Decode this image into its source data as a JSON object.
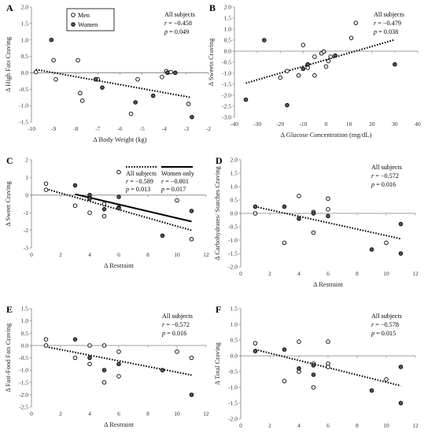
{
  "figure": {
    "legend": {
      "men": "Men",
      "women": "Women"
    }
  },
  "chart_data": [
    {
      "panel": "A",
      "type": "scatter",
      "xlabel": "Δ Body Weight (kg)",
      "ylabel": "Δ High Fats Craving",
      "xlim": [
        -10,
        -2
      ],
      "ylim": [
        -1.5,
        2.0
      ],
      "xticks": [
        -10,
        -9,
        -8,
        -7,
        -6,
        -5,
        -4,
        -3,
        -2
      ],
      "yticks": [
        -1.5,
        -1.0,
        -0.5,
        0.0,
        0.5,
        1.0,
        1.5,
        2.0
      ],
      "tick_decimals": 1,
      "show_legend": true,
      "stats": [
        {
          "title": "All subjects",
          "r": "−0.458",
          "p": "0.049"
        }
      ],
      "trend_lines": [
        {
          "style": "dotted",
          "x": [
            -9.8,
            -2.8
          ],
          "y": [
            0.1,
            -0.75
          ]
        }
      ],
      "series": [
        {
          "name": "Men",
          "marker": "open",
          "points": [
            [
              -9.8,
              0.02
            ],
            [
              -9.0,
              0.38
            ],
            [
              -8.9,
              -0.2
            ],
            [
              -7.9,
              0.38
            ],
            [
              -7.8,
              -0.62
            ],
            [
              -7.7,
              -0.85
            ],
            [
              -7.0,
              -0.2
            ],
            [
              -5.5,
              -1.25
            ],
            [
              -5.2,
              -0.2
            ],
            [
              -4.1,
              -0.13
            ],
            [
              -3.9,
              0.05
            ],
            [
              -3.7,
              0.02
            ],
            [
              -2.9,
              -0.95
            ]
          ]
        },
        {
          "name": "Women",
          "marker": "filled",
          "points": [
            [
              -9.1,
              1.0
            ],
            [
              -7.1,
              -0.2
            ],
            [
              -6.8,
              -0.45
            ],
            [
              -5.3,
              -0.9
            ],
            [
              -4.5,
              -0.7
            ],
            [
              -3.85,
              0.0
            ],
            [
              -3.5,
              0.0
            ],
            [
              -2.75,
              -1.35
            ]
          ]
        }
      ]
    },
    {
      "panel": "B",
      "type": "scatter",
      "xlabel": "Δ  Glucose Concentration (mg/dL)",
      "ylabel": "Δ Sweets Craving",
      "xlim": [
        -40,
        40
      ],
      "ylim": [
        -3.0,
        2.0
      ],
      "xticks": [
        -40,
        -30,
        -20,
        -10,
        0,
        10,
        20,
        30,
        40
      ],
      "yticks": [
        -3.0,
        -2.5,
        -2.0,
        -1.5,
        -1.0,
        -0.5,
        0.0,
        0.5,
        1.0,
        1.5,
        2.0
      ],
      "tick_decimals": 1,
      "show_legend": false,
      "stats": [
        {
          "title": "All subjects",
          "r": "−0.479",
          "p": "0.038"
        }
      ],
      "trend_lines": [
        {
          "style": "dotted",
          "x": [
            -35,
            30
          ],
          "y": [
            -1.45,
            0.52
          ]
        }
      ],
      "series": [
        {
          "name": "",
          "marker": "open",
          "points": [
            [
              -20,
              -1.2
            ],
            [
              -17,
              -0.9
            ],
            [
              -12,
              -1.1
            ],
            [
              -10,
              0.28
            ],
            [
              -8,
              -0.75
            ],
            [
              -5,
              -1.1
            ],
            [
              -5,
              -0.25
            ],
            [
              -2,
              -0.1
            ],
            [
              -1,
              -0.02
            ],
            [
              0,
              -0.7
            ],
            [
              1,
              -0.45
            ],
            [
              2,
              -0.25
            ],
            [
              11,
              0.6
            ],
            [
              13,
              1.28
            ]
          ]
        },
        {
          "name": "",
          "marker": "filled",
          "points": [
            [
              -35,
              -2.2
            ],
            [
              -27,
              0.5
            ],
            [
              -17,
              -2.45
            ],
            [
              -10,
              -0.8
            ],
            [
              -8,
              -0.6
            ],
            [
              4,
              -0.2
            ],
            [
              30,
              -0.6
            ]
          ]
        }
      ]
    },
    {
      "panel": "C",
      "type": "scatter",
      "xlabel": "Δ Restraint",
      "ylabel": "Δ Sweet Craving",
      "xlim": [
        0,
        12
      ],
      "ylim": [
        -3,
        2
      ],
      "xticks": [
        0,
        2,
        4,
        6,
        8,
        10,
        12
      ],
      "yticks": [
        -3,
        -2,
        -1,
        0,
        1,
        2
      ],
      "tick_decimals": 0,
      "show_legend": false,
      "stats": [
        {
          "title": "All subjects",
          "r": "−0.589",
          "p": "0.013"
        },
        {
          "title": "Women only",
          "r": "−0.801",
          "p": "0.017"
        }
      ],
      "trend_lines": [
        {
          "style": "dotted",
          "x": [
            1,
            11
          ],
          "y": [
            0.35,
            -2.0
          ]
        },
        {
          "style": "solid",
          "x": [
            3,
            11
          ],
          "y": [
            0.05,
            -1.5
          ]
        }
      ],
      "series": [
        {
          "name": "",
          "marker": "open",
          "points": [
            [
              1,
              0.65
            ],
            [
              1,
              0.3
            ],
            [
              3,
              -0.6
            ],
            [
              4,
              -0.15
            ],
            [
              4,
              -1.0
            ],
            [
              5,
              -0.5
            ],
            [
              5,
              -1.2
            ],
            [
              6,
              1.3
            ],
            [
              6,
              -0.7
            ],
            [
              10,
              -0.3
            ],
            [
              11,
              -2.5
            ]
          ]
        },
        {
          "name": "",
          "marker": "filled",
          "points": [
            [
              3,
              0.55
            ],
            [
              4,
              0.0
            ],
            [
              4,
              -0.2
            ],
            [
              5,
              -0.8
            ],
            [
              6,
              -0.1
            ],
            [
              6,
              -0.75
            ],
            [
              9,
              -2.3
            ],
            [
              11,
              -0.9
            ]
          ]
        }
      ]
    },
    {
      "panel": "D",
      "type": "scatter",
      "xlabel": "Δ Restraint",
      "ylabel": "Δ Carbohydrates/ Starches Craving",
      "xlim": [
        0,
        12
      ],
      "ylim": [
        -2.0,
        2.0
      ],
      "xticks": [
        0,
        2,
        4,
        6,
        8,
        10,
        12
      ],
      "yticks": [
        -2.0,
        -1.5,
        -1.0,
        -0.5,
        0.0,
        0.5,
        1.0,
        1.5,
        2.0
      ],
      "tick_decimals": 1,
      "show_legend": false,
      "stats": [
        {
          "title": "All subjects",
          "r": "−0.572",
          "p": "0.016"
        }
      ],
      "trend_lines": [
        {
          "style": "dotted",
          "x": [
            1,
            11
          ],
          "y": [
            0.25,
            -0.95
          ]
        }
      ],
      "series": [
        {
          "name": "",
          "marker": "open",
          "points": [
            [
              1,
              0.0
            ],
            [
              3,
              -1.1
            ],
            [
              4,
              0.65
            ],
            [
              5,
              0.05
            ],
            [
              5,
              -0.72
            ],
            [
              6,
              0.55
            ],
            [
              6,
              0.15
            ],
            [
              10,
              -1.1
            ]
          ]
        },
        {
          "name": "",
          "marker": "filled",
          "points": [
            [
              1,
              0.25
            ],
            [
              3,
              0.25
            ],
            [
              4,
              -0.2
            ],
            [
              5,
              0.0
            ],
            [
              6,
              -0.1
            ],
            [
              9,
              -1.35
            ],
            [
              11,
              -0.4
            ],
            [
              11,
              -1.5
            ]
          ]
        }
      ]
    },
    {
      "panel": "E",
      "type": "scatter",
      "xlabel": "Δ Restraint",
      "ylabel": "Δ Fast-Food  Fats Craving",
      "xlim": [
        0,
        12
      ],
      "ylim": [
        -2.5,
        1.5
      ],
      "xticks": [
        0,
        2,
        4,
        6,
        8,
        10,
        12
      ],
      "yticks": [
        -2.5,
        -2.0,
        -1.5,
        -1.0,
        -0.5,
        0.0,
        0.5,
        1.0,
        1.5
      ],
      "tick_decimals": 1,
      "show_legend": false,
      "stats": [
        {
          "title": "All subjects",
          "r": "−0.572",
          "p": "0.016"
        }
      ],
      "trend_lines": [
        {
          "style": "dotted",
          "x": [
            1,
            11
          ],
          "y": [
            -0.05,
            -1.2
          ]
        }
      ],
      "series": [
        {
          "name": "",
          "marker": "open",
          "points": [
            [
              1,
              0.25
            ],
            [
              1,
              0.0
            ],
            [
              3,
              -0.5
            ],
            [
              4,
              0.0
            ],
            [
              4,
              -0.75
            ],
            [
              5,
              0.0
            ],
            [
              5,
              -1.5
            ],
            [
              6,
              -0.25
            ],
            [
              6,
              -1.25
            ],
            [
              10,
              -0.25
            ],
            [
              11,
              -0.5
            ]
          ]
        },
        {
          "name": "",
          "marker": "filled",
          "points": [
            [
              3,
              0.25
            ],
            [
              4,
              -0.5
            ],
            [
              5,
              -1.0
            ],
            [
              6,
              -0.75
            ],
            [
              9,
              -1.0
            ],
            [
              11,
              -2.0
            ]
          ]
        }
      ]
    },
    {
      "panel": "F",
      "type": "scatter",
      "xlabel": "Δ Restraint",
      "ylabel": "Δ Total Craving",
      "xlim": [
        0,
        12
      ],
      "ylim": [
        -2.0,
        1.5
      ],
      "xticks": [
        0,
        2,
        4,
        6,
        8,
        10,
        12
      ],
      "yticks": [
        -2.0,
        -1.5,
        -1.0,
        -0.5,
        0.0,
        0.5,
        1.0,
        1.5
      ],
      "tick_decimals": 1,
      "show_legend": false,
      "stats": [
        {
          "title": "All subjects",
          "r": "−0.578",
          "p": "0.015"
        }
      ],
      "trend_lines": [
        {
          "style": "dotted",
          "x": [
            1,
            11
          ],
          "y": [
            0.2,
            -0.95
          ]
        }
      ],
      "series": [
        {
          "name": "",
          "marker": "open",
          "points": [
            [
              1,
              0.4
            ],
            [
              3,
              -0.8
            ],
            [
              4,
              0.45
            ],
            [
              4,
              -0.5
            ],
            [
              5,
              -0.25
            ],
            [
              5,
              -1.0
            ],
            [
              6,
              0.45
            ],
            [
              6,
              -0.25
            ],
            [
              6,
              -0.35
            ],
            [
              10,
              -0.75
            ]
          ]
        },
        {
          "name": "",
          "marker": "filled",
          "points": [
            [
              1,
              0.15
            ],
            [
              3,
              0.2
            ],
            [
              4,
              -0.4
            ],
            [
              5,
              -0.3
            ],
            [
              5,
              -0.6
            ],
            [
              9,
              -1.1
            ],
            [
              11,
              -0.35
            ],
            [
              11,
              -1.5
            ]
          ]
        }
      ]
    }
  ]
}
